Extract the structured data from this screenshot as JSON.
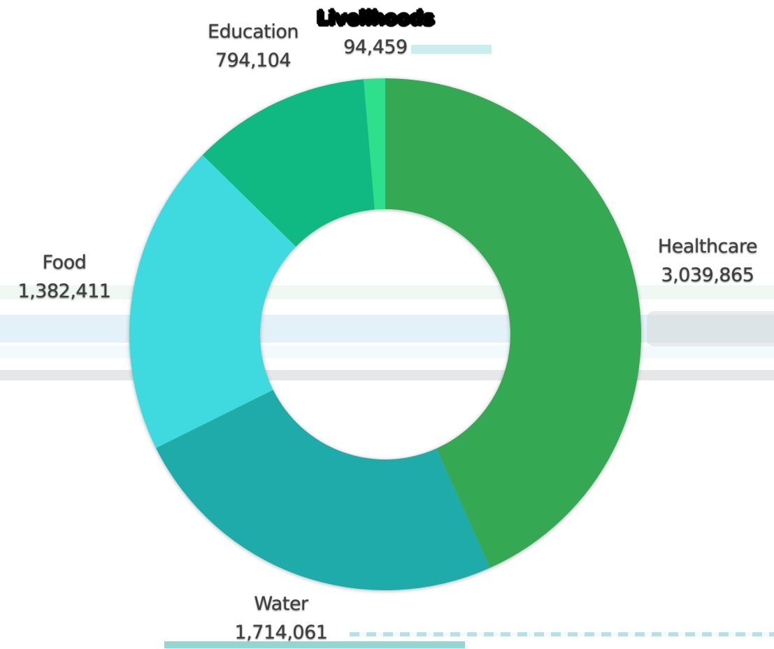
{
  "chart_data": {
    "type": "pie",
    "subtype": "donut",
    "title": "",
    "direction": "clockwise",
    "start_angle_deg": 0,
    "legend_position": "outside-labels",
    "segments": [
      {
        "label": "Healthcare",
        "value": 3039865,
        "value_display": "3,039,865",
        "color": "#34a853"
      },
      {
        "label": "Water",
        "value": 1714061,
        "value_display": "1,714,061",
        "color": "#20abab"
      },
      {
        "label": "Food",
        "value": 1382411,
        "value_display": "1,382,411",
        "color": "#3edae0"
      },
      {
        "label": "Education",
        "value": 794104,
        "value_display": "794,104",
        "color": "#10b981"
      },
      {
        "label": "Livelihoods",
        "value": 94459,
        "value_display": "94,459",
        "color": "#2ee08c",
        "label_obscured": true
      }
    ]
  }
}
